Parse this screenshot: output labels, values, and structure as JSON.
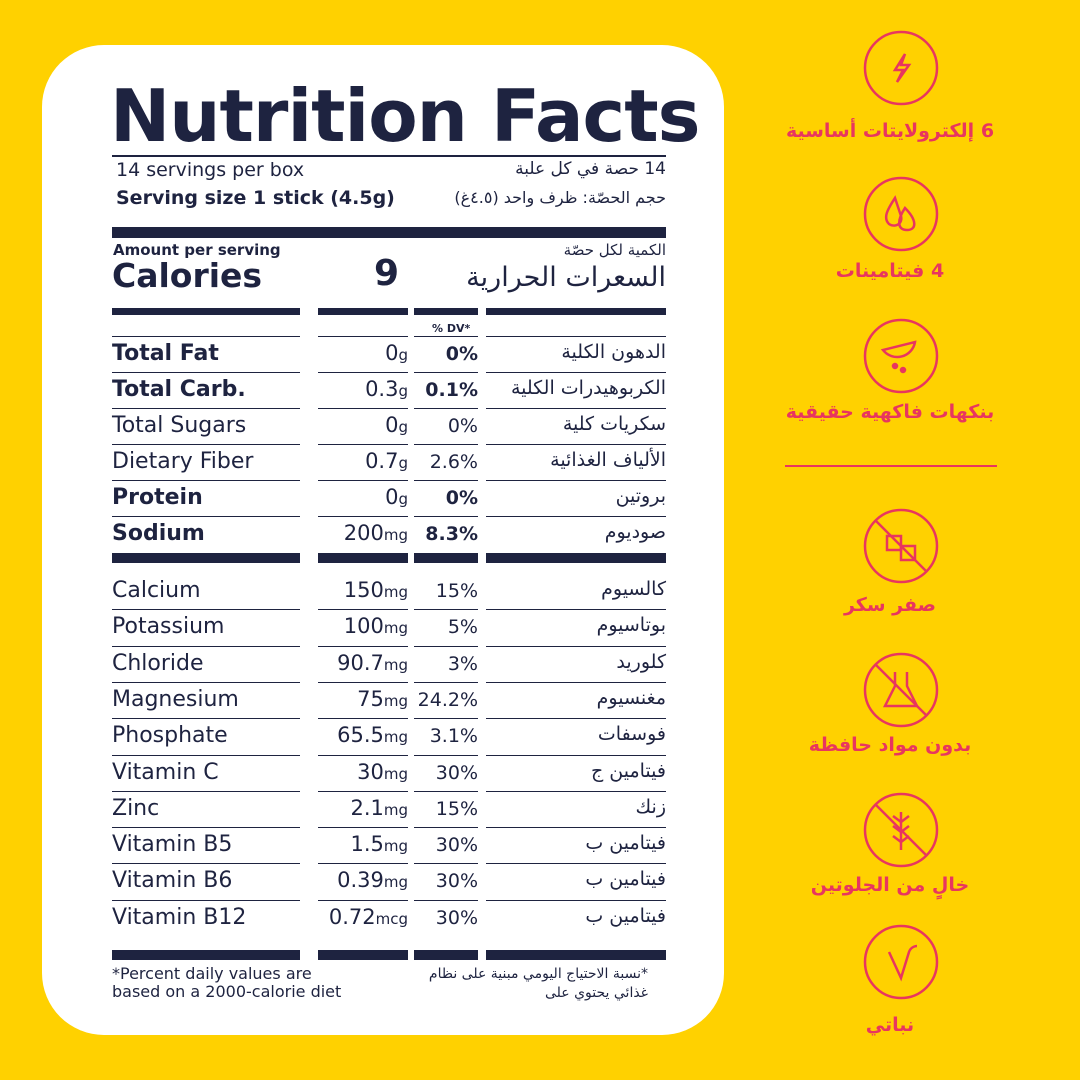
{
  "header": {
    "title": "Nutrition Facts",
    "servings": "14 servings per box",
    "servings_ar": "14 حصة في كل علبة",
    "serving_size_label": "Serving size",
    "serving_size": "1 stick (4.5g)",
    "serving_size_ar": "حجم الحصّة: ظرف واحد (٤.٥غ)"
  },
  "calories": {
    "amount_label": "Amount per serving",
    "label": "Calories",
    "value": "9",
    "amount_label_ar": "الكمية لكل حصّة",
    "label_ar": "السعرات الحرارية"
  },
  "dv_header": "% DV*",
  "macros": [
    {
      "name": "Total Fat",
      "amount": "0",
      "unit": "g",
      "dv": "0%",
      "ar": "الدهون الكلية",
      "bold": true
    },
    {
      "name": "Total Carb.",
      "amount": "0.3",
      "unit": "g",
      "dv": "0.1%",
      "ar": "الكربوهيدرات الكلية",
      "bold": true
    },
    {
      "name": "Total Sugars",
      "amount": "0",
      "unit": "g",
      "dv": "0%",
      "ar": "سكريات كلية",
      "bold": false
    },
    {
      "name": "Dietary Fiber",
      "amount": "0.7",
      "unit": "g",
      "dv": "2.6%",
      "ar": "الألياف الغذائية",
      "bold": false
    },
    {
      "name": "Protein",
      "amount": "0",
      "unit": "g",
      "dv": "0%",
      "ar": "بروتين",
      "bold": true
    },
    {
      "name": "Sodium",
      "amount": "200",
      "unit": "mg",
      "dv": "8.3%",
      "ar": "صوديوم",
      "bold": true
    }
  ],
  "micros": [
    {
      "name": "Calcium",
      "amount": "150",
      "unit": "mg",
      "dv": "15%",
      "ar": "كالسيوم"
    },
    {
      "name": "Potassium",
      "amount": "100",
      "unit": "mg",
      "dv": "5%",
      "ar": "بوتاسيوم"
    },
    {
      "name": "Chloride",
      "amount": "90.7",
      "unit": "mg",
      "dv": "3%",
      "ar": "كلوريد"
    },
    {
      "name": "Magnesium",
      "amount": "75",
      "unit": "mg",
      "dv": "24.2%",
      "ar": "مغنسيوم"
    },
    {
      "name": "Phosphate",
      "amount": "65.5",
      "unit": "mg",
      "dv": "3.1%",
      "ar": "فوسفات"
    },
    {
      "name": "Vitamin C",
      "amount": "30",
      "unit": "mg",
      "dv": "30%",
      "ar": "فيتامين ج"
    },
    {
      "name": "Zinc",
      "amount": "2.1",
      "unit": "mg",
      "dv": "15%",
      "ar": "زنك"
    },
    {
      "name": "Vitamin B5",
      "amount": "1.5",
      "unit": "mg",
      "dv": "30%",
      "ar": "فيتامين ب"
    },
    {
      "name": "Vitamin B6",
      "amount": "0.39",
      "unit": "mg",
      "dv": "30%",
      "ar": "فيتامين ب"
    },
    {
      "name": "Vitamin B12",
      "amount": "0.72",
      "unit": "mcg",
      "dv": "30%",
      "ar": "فيتامين ب"
    }
  ],
  "footnote": {
    "en": [
      "*Percent daily values are",
      "based on a 2000-calorie diet"
    ],
    "ar": [
      "*نسبة الاحتياج اليومي مبنية على نظام",
      "غذائي يحتوي على"
    ]
  },
  "features": [
    "6 إلكترولايتات أساسية",
    "4 فيتامينات",
    "بنكهات فاكهية حقيقية",
    "صفر سكر",
    "بدون مواد حافظة",
    "خالٍ من الجلوتين",
    "نباتي"
  ]
}
